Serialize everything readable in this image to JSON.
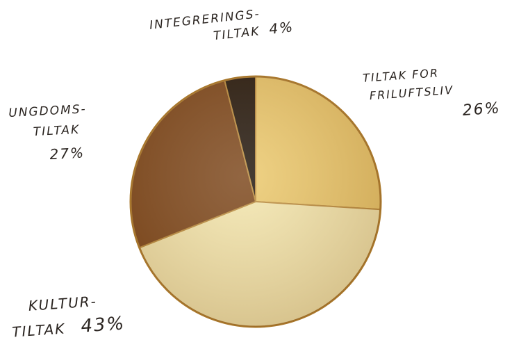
{
  "chart_data": {
    "type": "pie",
    "title": "",
    "slices": [
      {
        "label": "TILTAK FOR FRILUFTSLIV",
        "value": 26,
        "value_label": "26%",
        "color": "#ebc86a"
      },
      {
        "label": "KULTURTILTAK",
        "value": 43,
        "value_label": "43%",
        "color": "#f4e7ad"
      },
      {
        "label": "UNGDOMSTILTAK",
        "value": 27,
        "value_label": "27%",
        "color": "#7a4418"
      },
      {
        "label": "INTEGRERINGSTILTAK",
        "value": 4,
        "value_label": "4%",
        "color": "#1d1208"
      }
    ],
    "labels": {
      "integrering": {
        "line1": "INTEGRERINGS-",
        "line2": "TILTAK",
        "value": "4%"
      },
      "friluft": {
        "line1": "TILTAK FOR",
        "line2": "FRILUFTSLIV",
        "value": "26%"
      },
      "ungdom": {
        "line1": "UNGDOMS-",
        "line2": "TILTAK",
        "value": "27%"
      },
      "kultur": {
        "line1": "KULTUR-",
        "line2": "TILTAK",
        "value": "43%"
      }
    }
  }
}
